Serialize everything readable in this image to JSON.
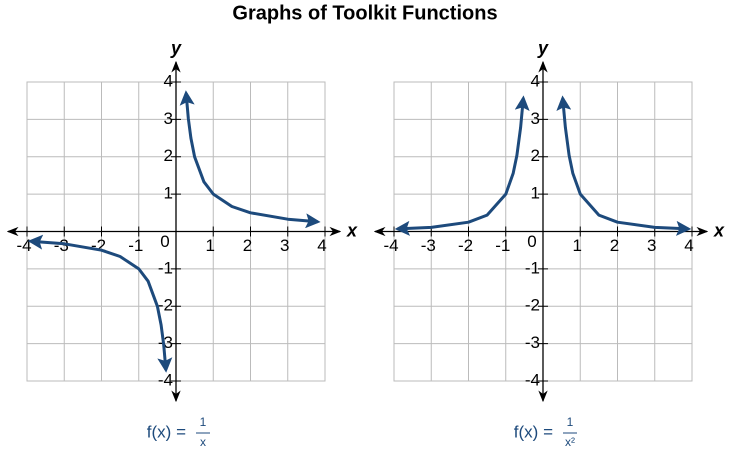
{
  "title": "Graphs of Toolkit Functions",
  "chart_data": [
    {
      "type": "line",
      "xlabel": "x",
      "ylabel": "y",
      "origin_label": "0",
      "x": [
        -3.9,
        -3,
        -2,
        -1.5,
        -1,
        -0.75,
        -0.5,
        -0.4,
        -0.33,
        -0.27,
        0,
        0.27,
        0.33,
        0.4,
        0.5,
        0.75,
        1,
        1.5,
        2,
        3,
        3.8
      ],
      "series": [
        {
          "name": "f(x) = 1/x",
          "color": "#1d4a7c",
          "values": [
            -0.26,
            -0.33,
            -0.5,
            -0.67,
            -1,
            -1.33,
            -2,
            -2.5,
            -3.03,
            -3.7,
            null,
            3.7,
            3.03,
            2.5,
            2,
            1.33,
            1,
            0.67,
            0.5,
            0.33,
            0.26
          ]
        }
      ],
      "xlim": [
        -4,
        4
      ],
      "ylim": [
        -4,
        4
      ],
      "xticks": [
        -4,
        -3,
        -2,
        -1,
        1,
        2,
        3,
        4
      ],
      "yticks": [
        -4,
        -3,
        -2,
        -1,
        1,
        2,
        3,
        4
      ],
      "grid": true,
      "formula": {
        "lhs": "f(x) =",
        "numerator": "1",
        "denominator": "x"
      }
    },
    {
      "type": "line",
      "xlabel": "x",
      "ylabel": "y",
      "origin_label": "0",
      "x": [
        -3.9,
        -3,
        -2,
        -1.5,
        -1,
        -0.8,
        -0.7,
        -0.6,
        -0.53,
        0,
        0.53,
        0.6,
        0.7,
        0.8,
        1,
        1.5,
        2,
        3,
        3.9
      ],
      "series": [
        {
          "name": "f(x) = 1/x²",
          "color": "#1d4a7c",
          "values": [
            0.07,
            0.11,
            0.25,
            0.44,
            1,
            1.56,
            2.04,
            2.78,
            3.56,
            null,
            3.56,
            2.78,
            2.04,
            1.56,
            1,
            0.44,
            0.25,
            0.11,
            0.07
          ]
        }
      ],
      "xlim": [
        -4,
        4
      ],
      "ylim": [
        -4,
        4
      ],
      "xticks": [
        -4,
        -3,
        -2,
        -1,
        1,
        2,
        3,
        4
      ],
      "yticks": [
        -4,
        -3,
        -2,
        -1,
        1,
        2,
        3,
        4
      ],
      "grid": true,
      "formula": {
        "lhs": "f(x) =",
        "numerator": "1",
        "denominator": "x²"
      }
    }
  ]
}
